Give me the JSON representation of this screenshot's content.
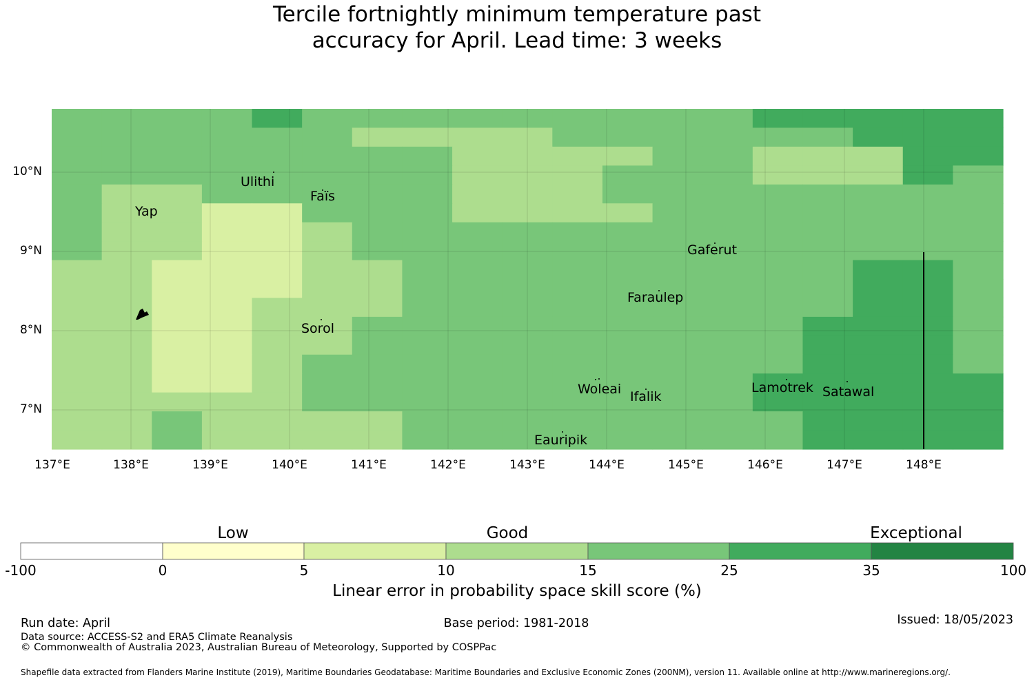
{
  "title": {
    "line1": "Tercile fortnightly minimum temperature past",
    "line2": "accuracy for April. Lead time: 3 weeks"
  },
  "map": {
    "x_ticks": [
      "137°E",
      "138°E",
      "139°E",
      "140°E",
      "141°E",
      "142°E",
      "143°E",
      "144°E",
      "145°E",
      "146°E",
      "147°E",
      "148°E"
    ],
    "y_ticks": [
      "10°N",
      "9°N",
      "8°N",
      "7°N"
    ],
    "places": [
      {
        "name": "Ulithi"
      },
      {
        "name": "Faïs"
      },
      {
        "name": "Yap"
      },
      {
        "name": "Gaferut"
      },
      {
        "name": "Faraulep"
      },
      {
        "name": "Sorol"
      },
      {
        "name": "Woleai"
      },
      {
        "name": "Ifalik"
      },
      {
        "name": "Lamotrek"
      },
      {
        "name": "Satawal"
      },
      {
        "name": "Eauripik"
      }
    ],
    "grid_rows_skill_class": [
      "3333433333333344444",
      "3333332222333333444",
      "3333333322223322244",
      "3333333322233322243",
      "3223333322233333333",
      "3221133322223333333",
      "3221123333333333333",
      "3221123333333333333",
      "2211122333333333443",
      "2211122333333333443",
      "2211222333333333443",
      "2211223333333334443",
      "2211223333333334443",
      "2211233333333334443",
      "2211233333333344444",
      "2222233333333344444",
      "2232222333333334444",
      "2232222333333334444"
    ]
  },
  "colorbar": {
    "categories": [
      "Low",
      "Good",
      "Exceptional"
    ],
    "ticks": [
      "-100",
      "0",
      "5",
      "10",
      "15",
      "25",
      "35",
      "100"
    ],
    "colors": [
      "#ffffff",
      "#ffffcc",
      "#d9f0a3",
      "#addd8e",
      "#78c679",
      "#41ab5d",
      "#238443"
    ],
    "label": "Linear error in probability space skill score (%)"
  },
  "footer": {
    "run_date": "Run date: April",
    "base_period": "Base period: 1981-2018",
    "issued": "Issued: 18/05/2023",
    "data_source": "Data source: ACCESS-S2 and ERA5 Climate Reanalysis",
    "copyright": "© Commonwealth of Australia 2023, Australian Bureau of Meteorology, Supported by COSPPac",
    "shapefile": "Shapefile data extracted from Flanders Marine Institute (2019), Maritime Boundaries Geodatabase: Maritime Boundaries and Exclusive Economic Zones (200NM), version 11. Available online at http://www.marineregions.org/."
  }
}
